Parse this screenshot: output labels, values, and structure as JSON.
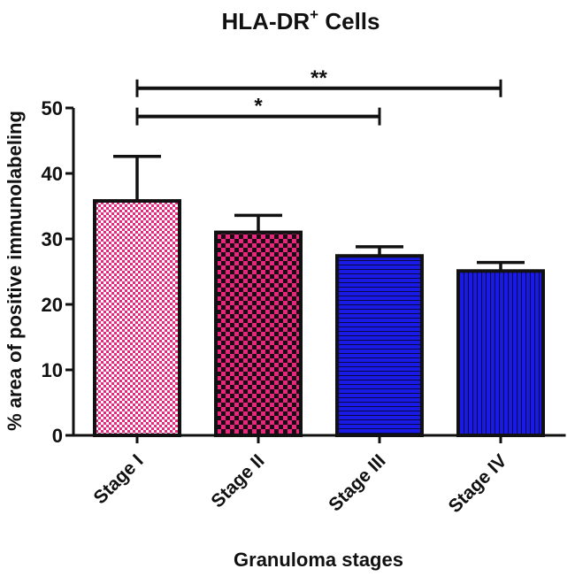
{
  "chart_data": {
    "type": "bar",
    "title": "HLA-DR",
    "title_superscript": "+",
    "title_suffix": " Cells",
    "xlabel": "Granuloma stages",
    "ylabel": "% area of positive immunolabeling",
    "ylim": [
      0,
      50
    ],
    "yticks": [
      "0",
      "10",
      "20",
      "30",
      "40",
      "50"
    ],
    "categories": [
      "Stage I",
      "Stage II",
      "Stage III",
      "Stage IV"
    ],
    "values": [
      35.8,
      31.0,
      27.4,
      25.1
    ],
    "error": [
      6.8,
      2.6,
      1.4,
      1.3
    ],
    "bar_colors": [
      "#e8267d",
      "#e8267d",
      "#1a1ae6",
      "#1a1ae6"
    ],
    "bar_patterns": [
      "fine-checker",
      "checker",
      "horizontal-lines",
      "vertical-lines"
    ],
    "significance": [
      {
        "from": "Stage I",
        "to": "Stage III",
        "label": "*",
        "y": 48.7
      },
      {
        "from": "Stage I",
        "to": "Stage IV",
        "label": "**",
        "y": 53.0
      }
    ],
    "grid": false,
    "legend": "none"
  }
}
